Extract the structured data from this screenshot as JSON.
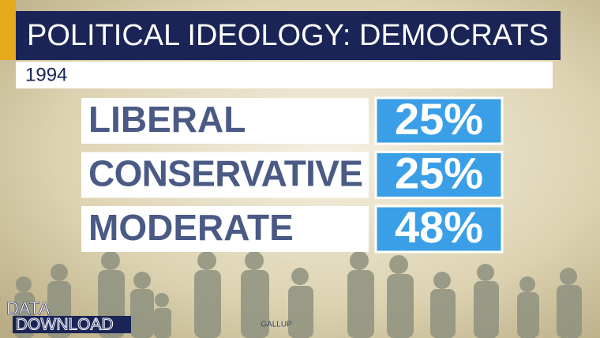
{
  "title": "POLITICAL IDEOLOGY: DEMOCRATS",
  "subtitle": "1994",
  "rows": [
    {
      "label": "LIBERAL",
      "value": "25%"
    },
    {
      "label": "CONSERVATIVE",
      "value": "25%"
    },
    {
      "label": "MODERATE",
      "value": "48%"
    }
  ],
  "brand": {
    "line1": "DATA",
    "line2": "DOWNLOAD"
  },
  "source": "GALLUP"
}
